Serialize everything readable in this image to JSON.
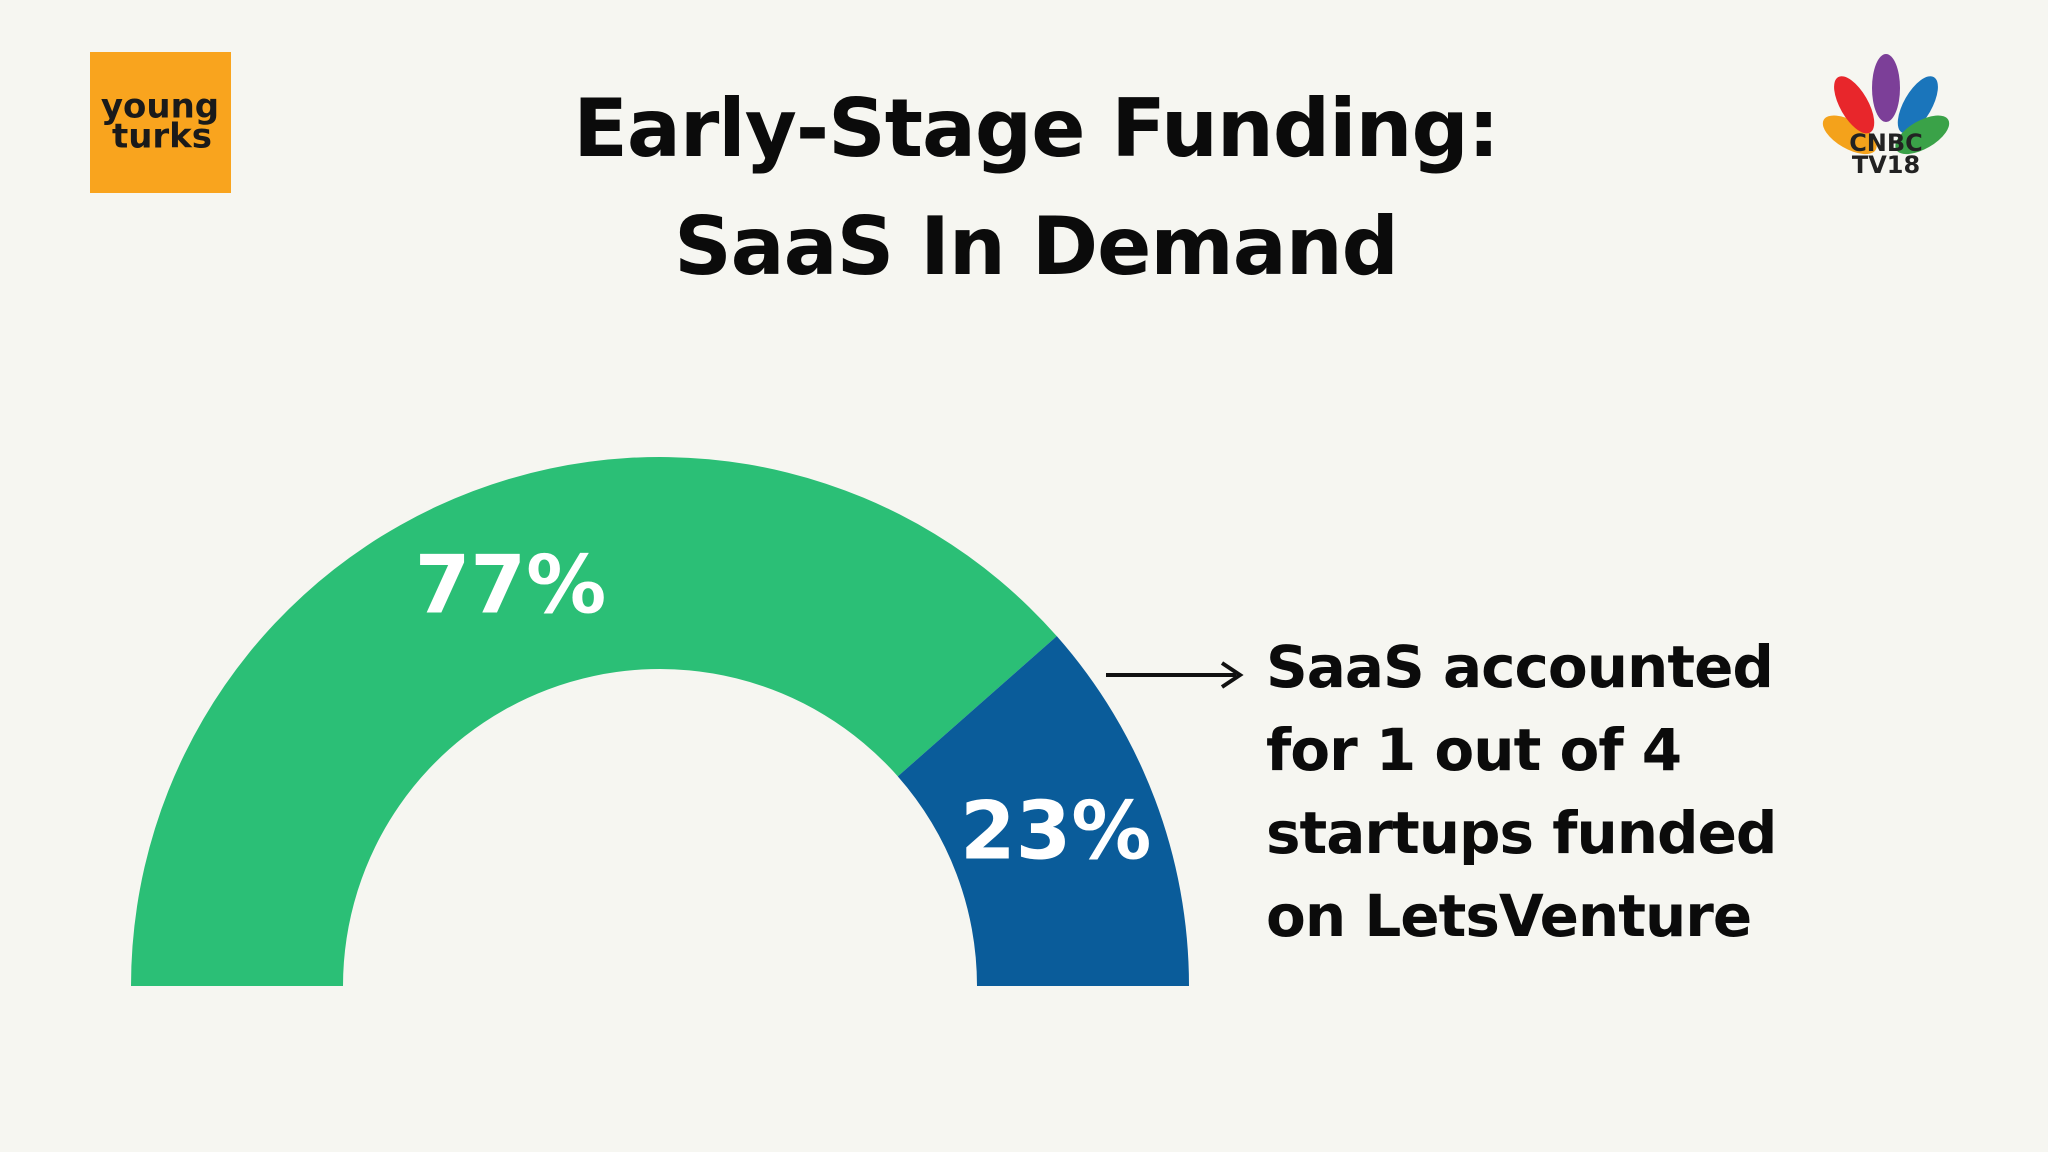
{
  "logo_left": {
    "line1": "young",
    "line2": "turks"
  },
  "logo_right": {
    "line1": "CNBC",
    "line2": "TV18"
  },
  "chart_data": {
    "type": "half-donut",
    "title": "Early-Stage Funding: SaaS In Demand",
    "values": [
      77,
      23
    ],
    "value_labels": [
      "77%",
      "23%"
    ],
    "colors": [
      "#2bbf76",
      "#0a5c9a"
    ],
    "annotation": "SaaS accounted for 1 out of 4 startups funded on LetsVenture"
  }
}
